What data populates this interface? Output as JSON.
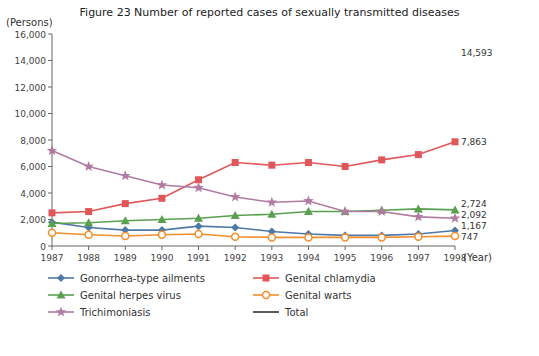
{
  "chart_data": {
    "type": "line",
    "title": "Figure 23  Number of reported cases of sexually transmitted diseases",
    "x_label": "(Year)",
    "y_label": "(Persons)",
    "x": [
      1987,
      1988,
      1989,
      1990,
      1991,
      1992,
      1993,
      1994,
      1995,
      1996,
      1997,
      1998
    ],
    "series": [
      {
        "name": "Gonorrhea-type ailments",
        "color": "#4e79a7",
        "marker": "diamond",
        "line_style": "solid",
        "values": [
          1800,
          1400,
          1200,
          1200,
          1500,
          1400,
          1100,
          900,
          800,
          800,
          900,
          1167
        ]
      },
      {
        "name": "Genital chlamydia",
        "color": "#e15759",
        "marker": "square",
        "line_style": "solid",
        "values": [
          2500,
          2600,
          3200,
          3600,
          5000,
          6300,
          6100,
          6300,
          6000,
          6500,
          6900,
          7863
        ]
      },
      {
        "name": "Genital herpes virus",
        "color": "#59a14f",
        "marker": "triangle",
        "line_style": "solid",
        "values": [
          1700,
          1750,
          1900,
          2000,
          2100,
          2300,
          2400,
          2600,
          2600,
          2700,
          2800,
          2724
        ]
      },
      {
        "name": "Genital warts",
        "color": "#f28e2b",
        "marker": "circle",
        "line_style": "solid",
        "values": [
          1000,
          850,
          750,
          850,
          900,
          700,
          650,
          650,
          650,
          650,
          700,
          747
        ]
      },
      {
        "name": "Trichimoniasis",
        "color": "#b07aa1",
        "marker": "star",
        "line_style": "solid",
        "values": [
          7200,
          6000,
          5300,
          4600,
          4400,
          3700,
          3300,
          3400,
          2600,
          2600,
          2200,
          2092
        ]
      },
      {
        "name": "Total",
        "color": "#333333",
        "marker": "none",
        "line_style": "solid",
        "values": [
          null,
          null,
          null,
          null,
          null,
          null,
          null,
          null,
          null,
          null,
          null,
          null
        ]
      }
    ],
    "annotations": [
      {
        "text": "14,593",
        "x": 1998,
        "y": 14593
      },
      {
        "text": "7,863",
        "x": 1998,
        "y": 7863
      },
      {
        "text": "2,724",
        "x": 1998,
        "y": 2724
      },
      {
        "text": "2,092",
        "x": 1998,
        "y": 2092
      },
      {
        "text": "1,167",
        "x": 1998,
        "y": 1167
      },
      {
        "text": "747",
        "x": 1998,
        "y": 747
      }
    ],
    "xlim": [
      1987,
      1998
    ],
    "xticks": [
      1987,
      1988,
      1989,
      1990,
      1991,
      1992,
      1993,
      1994,
      1995,
      1996,
      1997,
      1998
    ],
    "ylim": [
      0,
      16000
    ],
    "yticks": [
      0,
      {
        "value": 2000,
        "label": "2,000"
      },
      {
        "value": 4000,
        "label": "4,000"
      },
      {
        "value": 6000,
        "label": "6,000"
      },
      {
        "value": 8000,
        "label": "8,000"
      },
      {
        "value": 10000,
        "label": "10,000"
      },
      {
        "value": 12000,
        "label": "12,000"
      },
      {
        "value": 14000,
        "label": "14,000"
      },
      {
        "value": 16000,
        "label": "16,000"
      }
    ],
    "grid": false,
    "legend": "bottom"
  }
}
